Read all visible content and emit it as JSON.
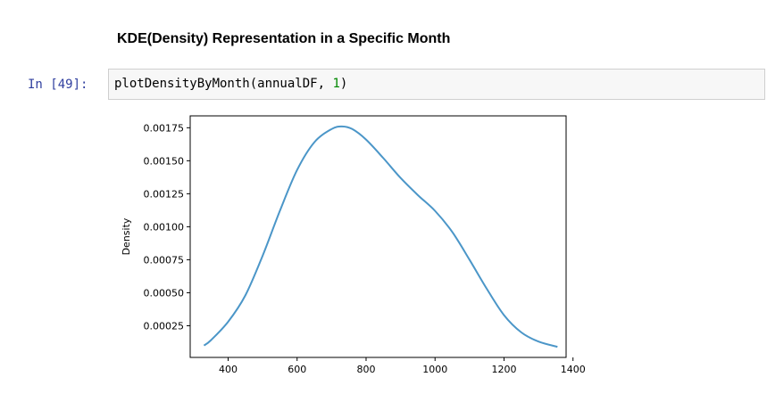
{
  "notebook": {
    "heading": "KDE(Density) Representation in a Specific Month",
    "cell": {
      "prompt": "In [49]:",
      "code_prefix": "plotDensityByMonth(annualDF, ",
      "code_number": "1",
      "code_suffix": ")"
    }
  },
  "colors": {
    "line": "#4b96c8",
    "prompt": "#303f9f",
    "code_number": "#008800"
  },
  "chart_data": {
    "type": "line",
    "title": "",
    "xlabel": "",
    "ylabel": "Density",
    "xlim": [
      290,
      1380
    ],
    "ylim": [
      1e-05,
      0.00184
    ],
    "xticks": [
      400,
      600,
      800,
      1000,
      1200,
      1400
    ],
    "yticks": [
      0.00025,
      0.0005,
      0.00075,
      0.001,
      0.00125,
      0.0015,
      0.00175
    ],
    "ytick_labels": [
      "0.00025",
      "0.00050",
      "0.00075",
      "0.00100",
      "0.00125",
      "0.00150",
      "0.00175"
    ],
    "grid": false,
    "series": [
      {
        "x": [
          330,
          350,
          400,
          450,
          500,
          550,
          600,
          650,
          700,
          730,
          760,
          800,
          850,
          900,
          950,
          1000,
          1050,
          1100,
          1150,
          1200,
          1250,
          1300,
          1355
        ],
        "values": [
          0.0001,
          0.00014,
          0.00028,
          0.00048,
          0.00078,
          0.00112,
          0.00143,
          0.00164,
          0.00174,
          0.00176,
          0.00174,
          0.00166,
          0.00152,
          0.00137,
          0.00124,
          0.00112,
          0.00096,
          0.00075,
          0.00053,
          0.00033,
          0.0002,
          0.00013,
          9e-05
        ]
      }
    ]
  }
}
